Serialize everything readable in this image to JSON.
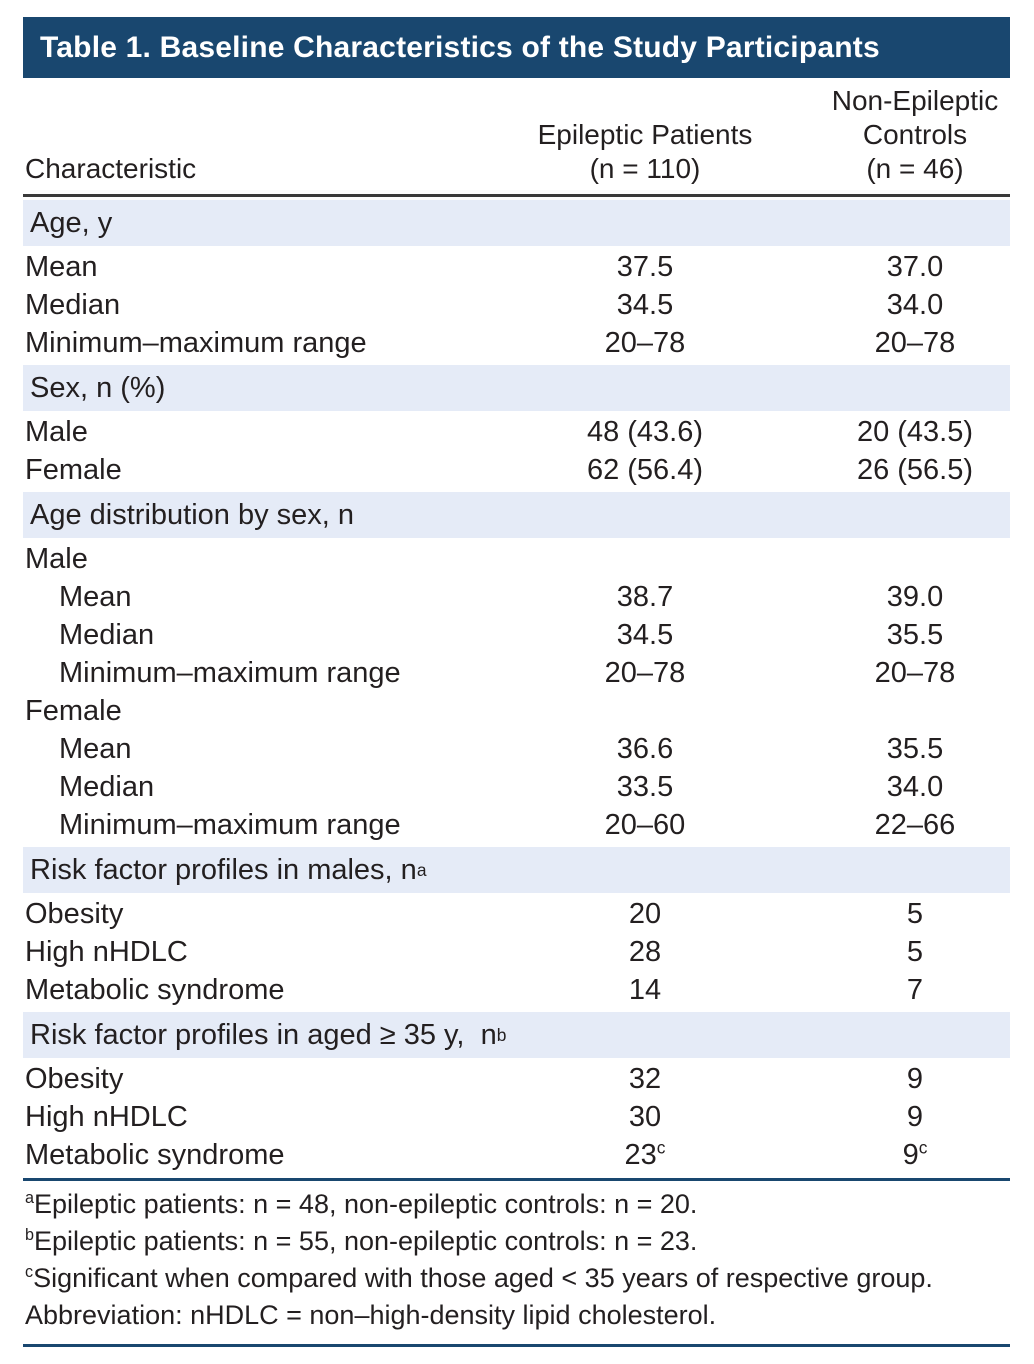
{
  "title": "Table 1. Baseline Characteristics of the Study Participants",
  "colors": {
    "header_navy": "#19476f",
    "section_band_blue": "#e5ebf7",
    "header_rule_dark": "#3a3a3a",
    "text": "#231f20"
  },
  "columns": {
    "characteristic": "Characteristic",
    "epileptic_line1": "Epileptic Patients",
    "epileptic_line2": "(n = 110)",
    "control_line1": "Non-Epileptic",
    "control_line2": "Controls",
    "control_line3": "(n = 46)"
  },
  "sections": [
    {
      "header": "Age, y",
      "header_sup": "",
      "rows": [
        {
          "label": "Mean",
          "v1": "37.5",
          "v2": "37.0"
        },
        {
          "label": "Median",
          "v1": "34.5",
          "v2": "34.0"
        },
        {
          "label": "Minimum–maximum range",
          "v1": "20–78",
          "v2": "20–78"
        }
      ]
    },
    {
      "header": "Sex, n (%)",
      "header_sup": "",
      "rows": [
        {
          "label": "Male",
          "v1": "48 (43.6)",
          "v2": "20 (43.5)"
        },
        {
          "label": "Female",
          "v1": "62 (56.4)",
          "v2": "26 (56.5)"
        }
      ]
    },
    {
      "header": "Age distribution by sex, n",
      "header_sup": "",
      "rows": [
        {
          "label": "Male",
          "v1": "",
          "v2": ""
        },
        {
          "label": "Mean",
          "v1": "38.7",
          "v2": "39.0"
        },
        {
          "label": "Median",
          "v1": "34.5",
          "v2": "35.5"
        },
        {
          "label": "Minimum–maximum range",
          "v1": "20–78",
          "v2": "20–78"
        },
        {
          "label": "Female",
          "v1": "",
          "v2": ""
        },
        {
          "label": "Mean",
          "v1": "36.6",
          "v2": "35.5"
        },
        {
          "label": "Median",
          "v1": "33.5",
          "v2": "34.0"
        },
        {
          "label": "Minimum–maximum range",
          "v1": "20–60",
          "v2": "22–66"
        }
      ]
    },
    {
      "header": "Risk factor profiles in males, n",
      "header_sup": "a",
      "rows": [
        {
          "label": "Obesity",
          "v1": "20",
          "v2": "5"
        },
        {
          "label": "High nHDLC",
          "v1": "28",
          "v2": "5"
        },
        {
          "label": "Metabolic syndrome",
          "v1": "14",
          "v2": "7"
        }
      ]
    },
    {
      "header": "Risk factor profiles in aged ≥ 35 y,  n",
      "header_sup": "b",
      "rows": [
        {
          "label": "Obesity",
          "v1": "32",
          "v2": "9"
        },
        {
          "label": "High nHDLC",
          "v1": "30",
          "v2": "9"
        },
        {
          "label": "Metabolic syndrome",
          "v1": "23",
          "v1_sup": "c",
          "v2": "9",
          "v2_sup": "c"
        }
      ]
    }
  ],
  "footnotes": [
    {
      "sup": "a",
      "text": "Epileptic patients: n = 48, non-epileptic controls: n = 20."
    },
    {
      "sup": "b",
      "text": "Epileptic patients: n = 55, non-epileptic controls: n = 23."
    },
    {
      "sup": "c",
      "text": "Significant when compared with those aged < 35 years of respective group."
    },
    {
      "sup": "",
      "text": "Abbreviation: nHDLC = non–high-density lipid cholesterol."
    }
  ]
}
